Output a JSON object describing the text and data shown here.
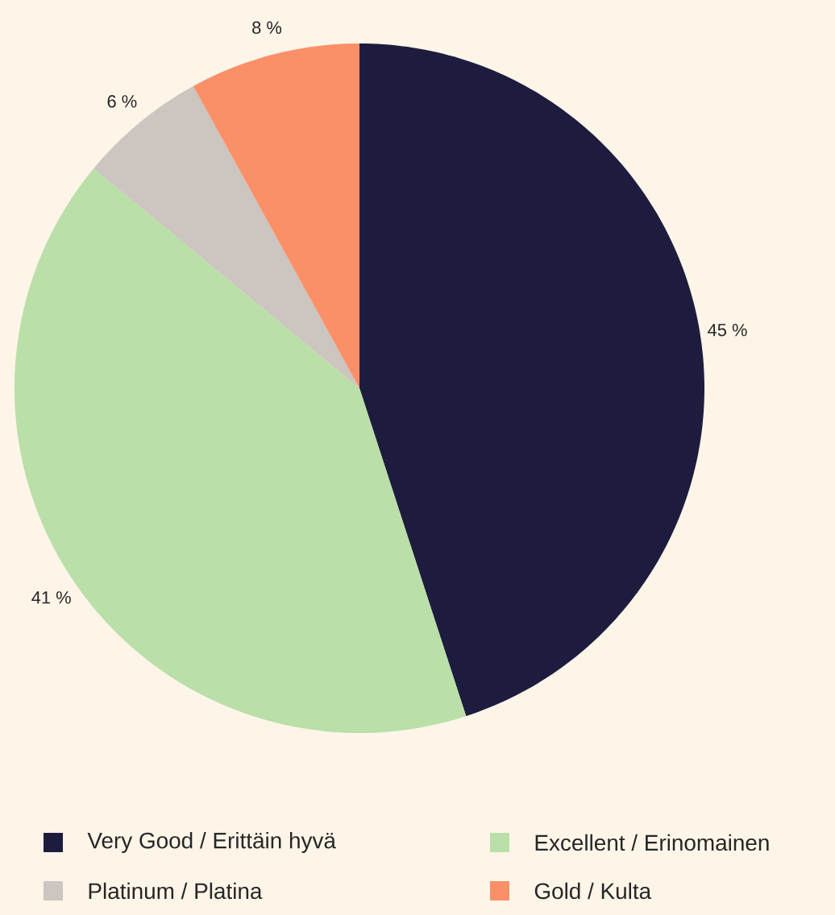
{
  "chart_data": {
    "type": "pie",
    "categories": [
      "Very Good / Erittäin hyvä",
      "Excellent / Erinomainen",
      "Platinum / Platina",
      "Gold / Kulta"
    ],
    "values": [
      45,
      41,
      6,
      8
    ],
    "colors": [
      "#1e1c3e",
      "#badfa8",
      "#ccc5c0",
      "#fb9068"
    ],
    "value_labels": [
      "45 %",
      "41 %",
      "6 %",
      "8 %"
    ],
    "legend": "bottom"
  }
}
